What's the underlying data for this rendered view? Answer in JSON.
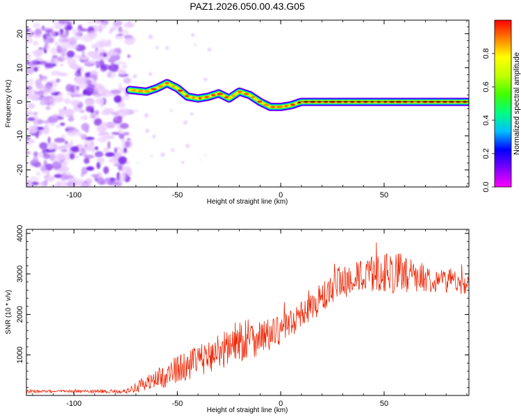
{
  "figure_title": "PAZ1.2026.050.00.43.G05",
  "chart_data": [
    {
      "type": "heatmap",
      "title": "PAZ1.2026.050.00.43.G05",
      "xlabel": "Height of straight line (km)",
      "ylabel": "Frequency (Hz)",
      "xlim": [
        -123,
        91
      ],
      "ylim": [
        -25,
        24
      ],
      "xticks": [
        -100,
        -50,
        0,
        50
      ],
      "yticks": [
        -20,
        -10,
        0,
        10,
        20
      ],
      "xtick_labels": [
        "-100",
        "-50",
        "0",
        "50"
      ],
      "ytick_labels": [
        "-20",
        "-10",
        "0",
        "10",
        "20"
      ],
      "colormap": "rainbow (magenta to red)",
      "colorbar": {
        "label": "Normalized spectral amplitude",
        "range": [
          0,
          1
        ],
        "ticks": [
          0.0,
          0.2,
          0.4,
          0.6,
          0.8
        ],
        "tick_labels": [
          "0.0",
          "0.2",
          "0.4",
          "0.6",
          "0.8"
        ],
        "stops": [
          "#ff00ff",
          "#8000ff",
          "#0000ff",
          "#00c0ff",
          "#00ff80",
          "#40ff00",
          "#c0ff00",
          "#ffff00",
          "#ff8000",
          "#ff0000"
        ]
      },
      "ridge": {
        "description": "dominant frequency track (Hz) vs height (km)",
        "x": [
          -73,
          -65,
          -60,
          -55,
          -50,
          -45,
          -40,
          -35,
          -30,
          -25,
          -20,
          -15,
          -10,
          -5,
          0,
          5,
          10,
          20,
          30,
          40,
          50,
          60,
          70,
          80,
          91
        ],
        "y": [
          3.5,
          3.0,
          4.0,
          5.5,
          4.0,
          1.5,
          1.0,
          1.5,
          2.5,
          1.0,
          3.0,
          2.0,
          0.0,
          -1.5,
          -1.5,
          -1.0,
          0.0,
          0.0,
          0.0,
          0.0,
          0.0,
          0.0,
          0.0,
          0.0,
          0.0
        ]
      },
      "noise_region": {
        "x": [
          -123,
          -73
        ],
        "y": [
          -25,
          24
        ],
        "amplitude_range": [
          0.0,
          0.2
        ]
      }
    },
    {
      "type": "line",
      "xlabel": "Height of straight line (km)",
      "ylabel": "SNR (10 * v/v)",
      "xlim": [
        -123,
        91
      ],
      "ylim": [
        0,
        4100
      ],
      "xticks": [
        -100,
        -50,
        0,
        50
      ],
      "yticks": [
        1000,
        2000,
        3000,
        4000
      ],
      "xtick_labels": [
        "-100",
        "-50",
        "0",
        "50"
      ],
      "ytick_labels": [
        "1000",
        "2000",
        "3000",
        "4000"
      ],
      "color": "#ee2200",
      "envelope": {
        "x": [
          -123,
          -100,
          -75,
          -70,
          -65,
          -60,
          -55,
          -50,
          -45,
          -40,
          -35,
          -30,
          -25,
          -20,
          -15,
          -10,
          -5,
          0,
          5,
          10,
          15,
          20,
          25,
          30,
          35,
          40,
          45,
          50,
          55,
          60,
          65,
          70,
          75,
          80,
          85,
          91
        ],
        "mean": [
          100,
          100,
          100,
          200,
          300,
          400,
          500,
          650,
          750,
          850,
          950,
          1100,
          1200,
          1350,
          1400,
          1450,
          1500,
          1600,
          1800,
          2000,
          2200,
          2400,
          2600,
          2800,
          2900,
          2950,
          3000,
          3050,
          3050,
          3000,
          2950,
          2900,
          2850,
          2850,
          2800,
          2750
        ],
        "spread": [
          40,
          40,
          50,
          120,
          200,
          250,
          300,
          350,
          350,
          400,
          400,
          450,
          500,
          550,
          500,
          450,
          400,
          350,
          350,
          350,
          350,
          400,
          450,
          450,
          400,
          400,
          450,
          500,
          550,
          450,
          400,
          350,
          300,
          300,
          300,
          250
        ]
      }
    }
  ]
}
